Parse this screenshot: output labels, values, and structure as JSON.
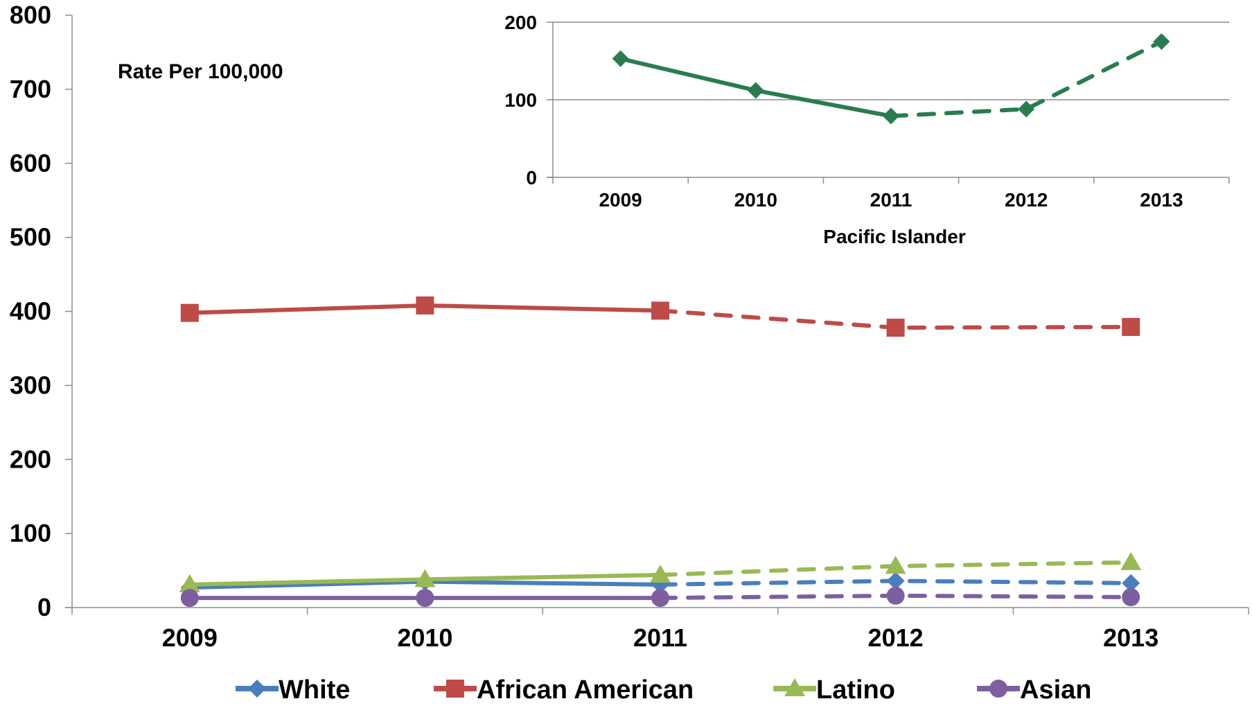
{
  "chart_data": [
    {
      "id": "main",
      "type": "line",
      "title": "",
      "xlabel": "",
      "ylabel": "Rate Per 100,000",
      "categories": [
        "2009",
        "2010",
        "2011",
        "2012",
        "2013"
      ],
      "ylim": [
        0,
        800
      ],
      "yticks": [
        "0",
        "100",
        "200",
        "300",
        "400",
        "500",
        "600",
        "700",
        "800"
      ],
      "grid": false,
      "dashed_from": "2011",
      "legend_position": "bottom",
      "series": [
        {
          "name": "White",
          "values": [
            27,
            35,
            31,
            36,
            33
          ],
          "color": "#4a7ebb",
          "marker": "diamond"
        },
        {
          "name": "African American",
          "values": [
            398,
            408,
            401,
            378,
            379
          ],
          "color": "#be4b48",
          "marker": "square"
        },
        {
          "name": "Latino",
          "values": [
            31,
            38,
            44,
            56,
            61
          ],
          "color": "#98b954",
          "marker": "triangle"
        },
        {
          "name": "Asian",
          "values": [
            13,
            13,
            13,
            16,
            14
          ],
          "color": "#7d5fa0",
          "marker": "circle"
        }
      ]
    },
    {
      "id": "inset",
      "type": "line",
      "title": "",
      "xlabel": "Pacific Islander",
      "ylabel": "",
      "categories": [
        "2009",
        "2010",
        "2011",
        "2012",
        "2013"
      ],
      "ylim": [
        0,
        200
      ],
      "yticks": [
        "0",
        "100",
        "200"
      ],
      "grid": true,
      "dashed_from": "2011",
      "series": [
        {
          "values": [
            153,
            112,
            79,
            88,
            175
          ],
          "color": "#2a7c4f",
          "marker": "diamond"
        }
      ]
    }
  ]
}
